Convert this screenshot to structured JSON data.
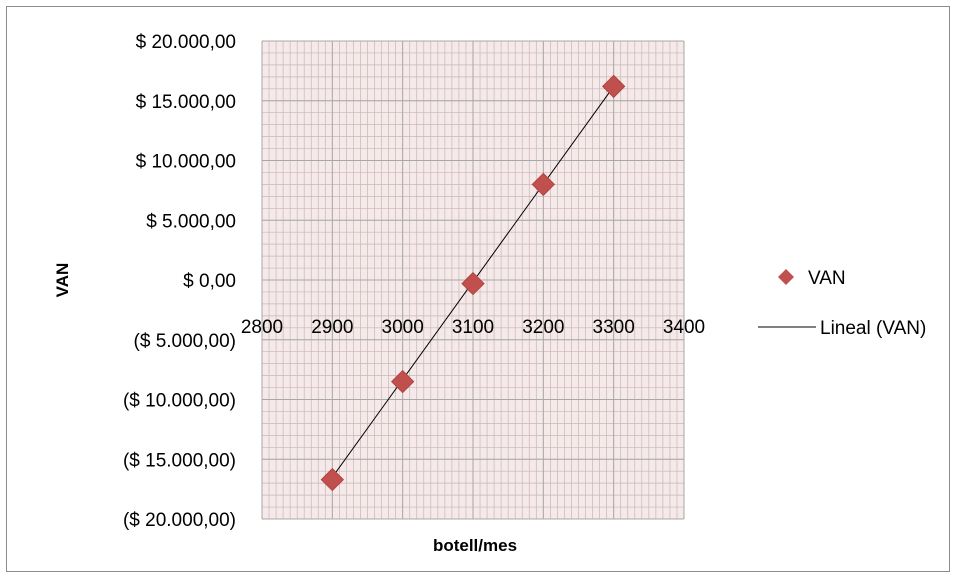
{
  "chart_data": {
    "type": "scatter",
    "title": "",
    "xlabel": "botell/mes",
    "ylabel": "VAN",
    "xlim": [
      2800,
      3400
    ],
    "ylim": [
      -20000,
      20000
    ],
    "x_ticks": [
      2800,
      2900,
      3000,
      3100,
      3200,
      3300,
      3400
    ],
    "x_tick_labels": [
      "2800",
      "2900",
      "3000",
      "3100",
      "3200",
      "3300",
      "3400"
    ],
    "y_ticks": [
      20000,
      15000,
      10000,
      5000,
      0,
      -5000,
      -10000,
      -15000,
      -20000
    ],
    "y_tick_labels": [
      "$ 20.000,00",
      "$ 15.000,00",
      "$ 10.000,00",
      "$ 5.000,00",
      "$ 0,00",
      "($ 5.000,00)",
      "($ 10.000,00)",
      "($ 15.000,00)",
      "($ 20.000,00)"
    ],
    "grid": true,
    "legend_position": "right",
    "series": [
      {
        "name": "VAN",
        "type": "scatter",
        "marker": "diamond",
        "color": "#c0504d",
        "x": [
          2900,
          3000,
          3100,
          3200,
          3300
        ],
        "y": [
          -16700,
          -8500,
          -300,
          8000,
          16200
        ]
      },
      {
        "name": "Lineal (VAN)",
        "type": "line",
        "color": "#000000",
        "x": [
          2900,
          3300
        ],
        "y": [
          -16500,
          16200
        ]
      }
    ],
    "colors": {
      "plot_background": "#f5e9e9",
      "major_grid": "#a8a8a8",
      "minor_grid": "#c8b8b8",
      "negative_label": "#ff0000",
      "positive_label": "#000000"
    }
  }
}
